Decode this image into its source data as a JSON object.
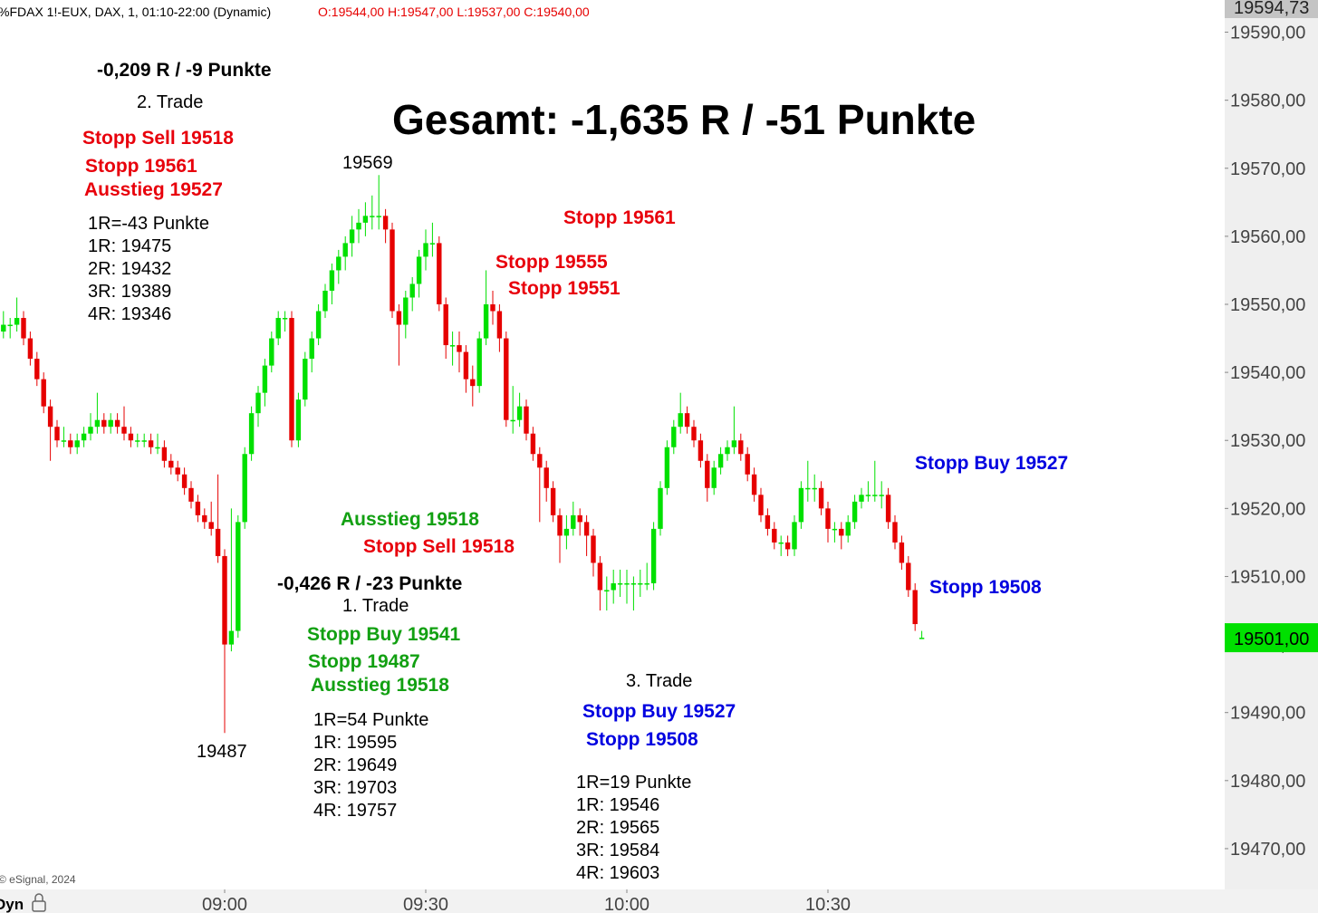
{
  "chart_data": {
    "type": "candlestick",
    "header": {
      "symbol": "%FDAX 1!-EUX, DAX, 1, 01:10-22:00 (Dynamic)",
      "ohlc": "O:19544,00 H:19547,00 L:19537,00 C:19540,00"
    },
    "x": [
      "08:27",
      "08:28",
      "08:29",
      "08:30",
      "08:31",
      "08:32",
      "08:33",
      "08:34",
      "08:35",
      "08:36",
      "08:37",
      "08:38",
      "08:39",
      "08:40",
      "08:41",
      "08:42",
      "08:43",
      "08:44",
      "08:45",
      "08:46",
      "08:47",
      "08:48",
      "08:49",
      "08:50",
      "08:51",
      "08:52",
      "08:53",
      "08:54",
      "08:55",
      "08:56",
      "08:57",
      "08:58",
      "08:59",
      "09:00",
      "09:01",
      "09:02",
      "09:03",
      "09:04",
      "09:05",
      "09:06",
      "09:07",
      "09:08",
      "09:09",
      "09:10",
      "09:11",
      "09:12",
      "09:13",
      "09:14",
      "09:15",
      "09:16",
      "09:17",
      "09:18",
      "09:19",
      "09:20",
      "09:21",
      "09:22",
      "09:23",
      "09:24",
      "09:25",
      "09:26",
      "09:27",
      "09:28",
      "09:29",
      "09:30",
      "09:31",
      "09:32",
      "09:33",
      "09:34",
      "09:35",
      "09:36",
      "09:37",
      "09:38",
      "09:39",
      "09:40",
      "09:41",
      "09:42",
      "09:43",
      "09:44",
      "09:45",
      "09:46",
      "09:47",
      "09:48",
      "09:49",
      "09:50",
      "09:51",
      "09:52",
      "09:53",
      "09:54",
      "09:55",
      "09:56",
      "09:57",
      "09:58",
      "09:59",
      "10:00",
      "10:01",
      "10:02",
      "10:03",
      "10:04",
      "10:05",
      "10:06",
      "10:07",
      "10:08",
      "10:09",
      "10:10",
      "10:11",
      "10:12",
      "10:13",
      "10:14",
      "10:15",
      "10:16",
      "10:17",
      "10:18",
      "10:19",
      "10:20",
      "10:21",
      "10:22",
      "10:23",
      "10:24",
      "10:25",
      "10:26",
      "10:27",
      "10:28",
      "10:29",
      "10:30",
      "10:31",
      "10:32",
      "10:33",
      "10:34",
      "10:35",
      "10:36",
      "10:37",
      "10:38",
      "10:39",
      "10:40",
      "10:41",
      "10:42",
      "10:43",
      "10:44"
    ],
    "candles": [
      [
        19546,
        19549,
        19545,
        19547
      ],
      [
        19547,
        19548,
        19545,
        19547
      ],
      [
        19547,
        19551,
        19546,
        19548
      ],
      [
        19548,
        19549,
        19544,
        19545
      ],
      [
        19545,
        19546,
        19541,
        19542
      ],
      [
        19542,
        19543,
        19538,
        19539
      ],
      [
        19539,
        19540,
        19534,
        19535
      ],
      [
        19535,
        19536,
        19527,
        19532
      ],
      [
        19532,
        19533,
        19529,
        19530
      ],
      [
        19530,
        19532,
        19529,
        19530
      ],
      [
        19530,
        19531,
        19528,
        19529
      ],
      [
        19529,
        19531,
        19528,
        19530
      ],
      [
        19530,
        19532,
        19529,
        19531
      ],
      [
        19531,
        19534,
        19530,
        19532
      ],
      [
        19532,
        19537,
        19531,
        19533
      ],
      [
        19533,
        19534,
        19531,
        19532
      ],
      [
        19532,
        19534,
        19531,
        19533
      ],
      [
        19533,
        19534,
        19531,
        19532
      ],
      [
        19532,
        19535,
        19530,
        19531
      ],
      [
        19531,
        19532,
        19529,
        19530
      ],
      [
        19530,
        19531,
        19529,
        19530
      ],
      [
        19530,
        19531,
        19529,
        19530
      ],
      [
        19530,
        19531,
        19528,
        19529
      ],
      [
        19529,
        19531,
        19528,
        19529
      ],
      [
        19529,
        19530,
        19526,
        19527
      ],
      [
        19527,
        19528,
        19525,
        19526
      ],
      [
        19526,
        19527,
        19524,
        19525
      ],
      [
        19525,
        19526,
        19522,
        19523
      ],
      [
        19523,
        19524,
        19520,
        19521
      ],
      [
        19521,
        19522,
        19518,
        19519
      ],
      [
        19519,
        19520,
        19517,
        19518
      ],
      [
        19518,
        19521,
        19516,
        19517
      ],
      [
        19517,
        19525,
        19512,
        19513
      ],
      [
        19513,
        19514,
        19487,
        19500
      ],
      [
        19500,
        19520,
        19499,
        19502
      ],
      [
        19502,
        19519,
        19501,
        19518
      ],
      [
        19518,
        19529,
        19517,
        19528
      ],
      [
        19528,
        19535,
        19527,
        19534
      ],
      [
        19534,
        19538,
        19532,
        19537
      ],
      [
        19537,
        19542,
        19535,
        19541
      ],
      [
        19541,
        19546,
        19540,
        19545
      ],
      [
        19545,
        19549,
        19544,
        19548
      ],
      [
        19548,
        19549,
        19546,
        19548
      ],
      [
        19548,
        19549,
        19529,
        19530
      ],
      [
        19530,
        19537,
        19529,
        19536
      ],
      [
        19536,
        19543,
        19535,
        19542
      ],
      [
        19542,
        19546,
        19540,
        19545
      ],
      [
        19545,
        19550,
        19544,
        19549
      ],
      [
        19549,
        19553,
        19548,
        19552
      ],
      [
        19552,
        19556,
        19550,
        19555
      ],
      [
        19555,
        19558,
        19553,
        19557
      ],
      [
        19557,
        19560,
        19555,
        19559
      ],
      [
        19559,
        19563,
        19557,
        19561
      ],
      [
        19561,
        19564,
        19559,
        19562
      ],
      [
        19562,
        19565,
        19560,
        19563
      ],
      [
        19563,
        19566,
        19561,
        19563
      ],
      [
        19563,
        19569,
        19561,
        19563
      ],
      [
        19563,
        19564,
        19559,
        19561
      ],
      [
        19561,
        19562,
        19548,
        19549
      ],
      [
        19549,
        19550,
        19541,
        19547
      ],
      [
        19547,
        19552,
        19545,
        19551
      ],
      [
        19551,
        19554,
        19549,
        19553
      ],
      [
        19553,
        19558,
        19551,
        19557
      ],
      [
        19557,
        19561,
        19555,
        19559
      ],
      [
        19559,
        19562,
        19557,
        19559
      ],
      [
        19559,
        19560,
        19549,
        19550
      ],
      [
        19550,
        19551,
        19542,
        19544
      ],
      [
        19544,
        19546,
        19541,
        19544
      ],
      [
        19544,
        19546,
        19540,
        19543
      ],
      [
        19543,
        19544,
        19537,
        19539
      ],
      [
        19539,
        19541,
        19535,
        19538
      ],
      [
        19538,
        19546,
        19537,
        19545
      ],
      [
        19545,
        19555,
        19544,
        19550
      ],
      [
        19550,
        19552,
        19547,
        19549
      ],
      [
        19549,
        19550,
        19543,
        19545
      ],
      [
        19545,
        19546,
        19532,
        19533
      ],
      [
        19533,
        19538,
        19531,
        19533
      ],
      [
        19533,
        19537,
        19532,
        19535
      ],
      [
        19535,
        19536,
        19530,
        19531
      ],
      [
        19531,
        19532,
        19527,
        19528
      ],
      [
        19528,
        19529,
        19518,
        19526
      ],
      [
        19526,
        19527,
        19521,
        19523
      ],
      [
        19523,
        19524,
        19518,
        19519
      ],
      [
        19519,
        19520,
        19512,
        19516
      ],
      [
        19516,
        19519,
        19514,
        19517
      ],
      [
        19517,
        19521,
        19516,
        19519
      ],
      [
        19519,
        19520,
        19516,
        19518
      ],
      [
        19518,
        19519,
        19513,
        19516
      ],
      [
        19516,
        19517,
        19510,
        19512
      ],
      [
        19512,
        19513,
        19505,
        19508
      ],
      [
        19508,
        19510,
        19505,
        19508
      ],
      [
        19508,
        19511,
        19506,
        19509
      ],
      [
        19509,
        19511,
        19507,
        19509
      ],
      [
        19509,
        19511,
        19506,
        19509
      ],
      [
        19509,
        19510,
        19505,
        19509
      ],
      [
        19509,
        19511,
        19507,
        19509
      ],
      [
        19509,
        19512,
        19508,
        19509
      ],
      [
        19509,
        19518,
        19508,
        19517
      ],
      [
        19517,
        19524,
        19516,
        19523
      ],
      [
        19523,
        19530,
        19522,
        19529
      ],
      [
        19529,
        19533,
        19528,
        19532
      ],
      [
        19532,
        19537,
        19531,
        19534
      ],
      [
        19534,
        19535,
        19531,
        19532
      ],
      [
        19532,
        19533,
        19529,
        19530
      ],
      [
        19530,
        19531,
        19526,
        19527
      ],
      [
        19527,
        19528,
        19521,
        19523
      ],
      [
        19523,
        19527,
        19522,
        19526
      ],
      [
        19526,
        19529,
        19525,
        19528
      ],
      [
        19528,
        19530,
        19527,
        19529
      ],
      [
        19529,
        19535,
        19528,
        19530
      ],
      [
        19530,
        19531,
        19527,
        19528
      ],
      [
        19528,
        19529,
        19524,
        19525
      ],
      [
        19525,
        19526,
        19521,
        19522
      ],
      [
        19522,
        19523,
        19518,
        19519
      ],
      [
        19519,
        19520,
        19516,
        19517
      ],
      [
        19517,
        19518,
        19514,
        19515
      ],
      [
        19515,
        19516,
        19513,
        19515
      ],
      [
        19515,
        19516,
        19513,
        19514
      ],
      [
        19514,
        19519,
        19513,
        19518
      ],
      [
        19518,
        19524,
        19517,
        19523
      ],
      [
        19523,
        19527,
        19521,
        19523
      ],
      [
        19523,
        19525,
        19521,
        19523
      ],
      [
        19523,
        19524,
        19519,
        19520
      ],
      [
        19520,
        19521,
        19515,
        19517
      ],
      [
        19517,
        19518,
        19515,
        19517
      ],
      [
        19517,
        19518,
        19514,
        19516
      ],
      [
        19516,
        19519,
        19515,
        19518
      ],
      [
        19518,
        19522,
        19517,
        19521
      ],
      [
        19521,
        19523,
        19520,
        19522
      ],
      [
        19522,
        19524,
        19521,
        19522
      ],
      [
        19522,
        19527,
        19521,
        19522
      ],
      [
        19522,
        19524,
        19520,
        19522
      ],
      [
        19522,
        19523,
        19517,
        19518
      ],
      [
        19518,
        19519,
        19514,
        19515
      ],
      [
        19515,
        19516,
        19511,
        19512
      ],
      [
        19512,
        19513,
        19507,
        19508
      ],
      [
        19508,
        19509,
        19502,
        19503
      ],
      [
        19501,
        19502,
        19501,
        19501
      ]
    ],
    "up_color": "#00e000",
    "down_color": "#e60000",
    "ylim": [
      19464,
      19594.73
    ],
    "yticks": [
      {
        "value": 19590,
        "label": "19590,00"
      },
      {
        "value": 19580,
        "label": "19580,00"
      },
      {
        "value": 19570,
        "label": "19570,00"
      },
      {
        "value": 19560,
        "label": "19560,00"
      },
      {
        "value": 19550,
        "label": "19550,00"
      },
      {
        "value": 19540,
        "label": "19540,00"
      },
      {
        "value": 19530,
        "label": "19530,00"
      },
      {
        "value": 19520,
        "label": "19520,00"
      },
      {
        "value": 19510,
        "label": "19510,00"
      },
      {
        "value": 19500,
        "label": "19500,00"
      },
      {
        "value": 19490,
        "label": "19490,00"
      },
      {
        "value": 19480,
        "label": "19480,00"
      },
      {
        "value": 19470,
        "label": "19470,00"
      }
    ],
    "top_label": {
      "value": 19594.73,
      "label": "19594,73"
    },
    "last_price": {
      "value": 19501,
      "label": "19501,00"
    },
    "xticks": [
      "09:00",
      "09:30",
      "10:00",
      "10:30"
    ],
    "annotations": [
      "-0,209 R / -9 Punkte",
      "2. Trade",
      "Gesamt: -1,635 R / -51 Punkte",
      "Stopp Sell 19518",
      "Stopp 19561",
      "Ausstieg 19527",
      "1R=-43 Punkte",
      "1R: 19475",
      "2R: 19432",
      "3R: 19389",
      "4R: 19346",
      "19569",
      "Stopp 19561",
      "Stopp 19555",
      "Stopp 19551",
      "Stopp Buy 19527",
      "Ausstieg 19518",
      "Stopp Sell 19518",
      "-0,426 R / -23 Punkte",
      "1. Trade",
      "Stopp Buy 19541",
      "Stopp 19487",
      "Ausstieg 19518",
      "19487",
      "1R=54 Punkte",
      "1R: 19595",
      "2R: 19649",
      "3R: 19703",
      "4R: 19757",
      "3. Trade",
      "Stopp Buy 19527",
      "Stopp 19508",
      "Stopp 19508",
      "1R=19 Punkte",
      "1R: 19546",
      "2R: 19565",
      "3R: 19584",
      "4R: 19603"
    ],
    "footer": {
      "copyright": "© eSignal, 2024",
      "mode": "Dyn"
    }
  }
}
